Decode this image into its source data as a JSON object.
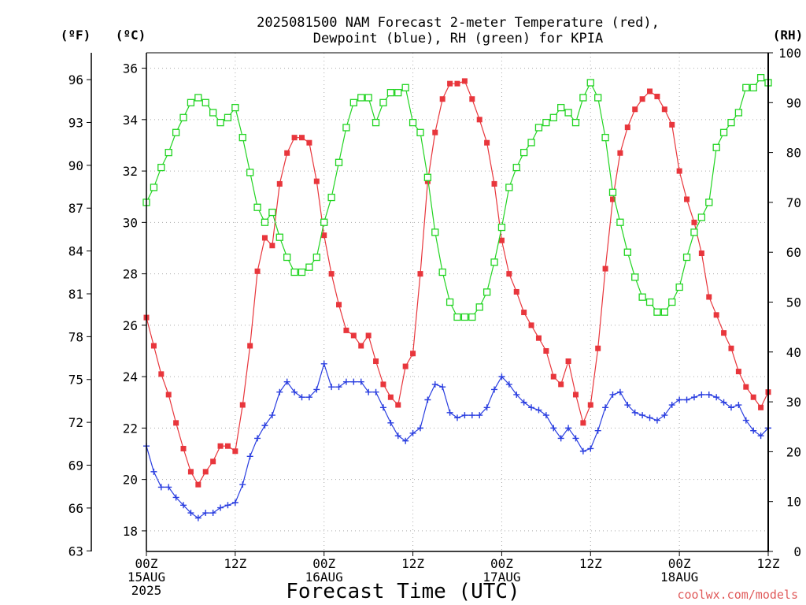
{
  "chart_data": {
    "type": "line",
    "title_line1": "2025081500 NAM Forecast 2-meter Temperature (red),",
    "title_line2": "Dewpoint (blue), RH (green) for KPIA",
    "xlabel": "Forecast Time (UTC)",
    "credit": "coolwx.com/models",
    "unit_labels": {
      "fahrenheit": "(ºF)",
      "celsius": "(ºC)",
      "rh": "(RH)"
    },
    "x_range_hours": [
      0,
      84
    ],
    "x_ticks": [
      {
        "hour": 0,
        "lines": [
          "00Z",
          "15AUG",
          "2025"
        ]
      },
      {
        "hour": 12,
        "lines": [
          "12Z"
        ]
      },
      {
        "hour": 24,
        "lines": [
          "00Z",
          "16AUG"
        ]
      },
      {
        "hour": 36,
        "lines": [
          "12Z"
        ]
      },
      {
        "hour": 48,
        "lines": [
          "00Z",
          "17AUG"
        ]
      },
      {
        "hour": 60,
        "lines": [
          "12Z"
        ]
      },
      {
        "hour": 72,
        "lines": [
          "00Z",
          "18AUG"
        ]
      },
      {
        "hour": 84,
        "lines": [
          "12Z"
        ]
      }
    ],
    "ylim_celsius": [
      17.2,
      36.6
    ],
    "ylim_rh": [
      0,
      100
    ],
    "celsius_ticks": [
      "18",
      "20",
      "22",
      "24",
      "26",
      "28",
      "30",
      "32",
      "34",
      "36"
    ],
    "fahrenheit_ticks": [
      "63",
      "66",
      "69",
      "72",
      "75",
      "78",
      "81",
      "84",
      "87",
      "90",
      "93",
      "96"
    ],
    "rh_ticks": [
      "0",
      "10",
      "20",
      "30",
      "40",
      "50",
      "60",
      "70",
      "80",
      "90",
      "100"
    ],
    "grid": true,
    "series": [
      {
        "name": "Temperature",
        "color": "#e8363c",
        "marker": "filled-square",
        "axis": "celsius",
        "values": [
          26.3,
          25.2,
          24.1,
          23.3,
          22.2,
          21.2,
          20.3,
          19.8,
          20.3,
          20.7,
          21.3,
          21.3,
          21.1,
          22.9,
          25.2,
          28.1,
          29.4,
          29.1,
          31.5,
          32.7,
          33.3,
          33.3,
          33.1,
          31.6,
          29.5,
          28.0,
          26.8,
          25.8,
          25.6,
          25.2,
          25.6,
          24.6,
          23.7,
          23.2,
          22.9,
          24.4,
          24.9,
          28.0,
          31.6,
          33.5,
          34.8,
          35.4,
          35.4,
          35.5,
          34.8,
          34.0,
          33.1,
          31.5,
          29.3,
          28.0,
          27.3,
          26.5,
          26.0,
          25.5,
          25.0,
          24.0,
          23.7,
          24.6,
          23.3,
          22.2,
          22.9,
          25.1,
          28.2,
          30.9,
          32.7,
          33.7,
          34.4,
          34.8,
          35.1,
          34.9,
          34.4,
          33.8,
          32.0,
          30.9,
          30.0,
          28.8,
          27.1,
          26.4,
          25.7,
          25.1,
          24.2,
          23.6,
          23.2,
          22.8,
          23.4
        ]
      },
      {
        "name": "Dewpoint",
        "color": "#2a3ee0",
        "marker": "plus",
        "axis": "celsius",
        "values": [
          21.3,
          20.3,
          19.7,
          19.7,
          19.3,
          19.0,
          18.7,
          18.5,
          18.7,
          18.7,
          18.9,
          19.0,
          19.1,
          19.8,
          20.9,
          21.6,
          22.1,
          22.5,
          23.4,
          23.8,
          23.4,
          23.2,
          23.2,
          23.5,
          24.5,
          23.6,
          23.6,
          23.8,
          23.8,
          23.8,
          23.4,
          23.4,
          22.8,
          22.2,
          21.7,
          21.5,
          21.8,
          22.0,
          23.1,
          23.7,
          23.6,
          22.6,
          22.4,
          22.5,
          22.5,
          22.5,
          22.8,
          23.5,
          24.0,
          23.7,
          23.3,
          23.0,
          22.8,
          22.7,
          22.5,
          22.0,
          21.6,
          22.0,
          21.6,
          21.1,
          21.2,
          21.9,
          22.8,
          23.3,
          23.4,
          22.9,
          22.6,
          22.5,
          22.4,
          22.3,
          22.5,
          22.9,
          23.1,
          23.1,
          23.2,
          23.3,
          23.3,
          23.2,
          23.0,
          22.8,
          22.9,
          22.3,
          21.9,
          21.7,
          22.0
        ]
      },
      {
        "name": "RH",
        "color": "#22d422",
        "marker": "open-square",
        "axis": "rh",
        "values": [
          70,
          73,
          77,
          80,
          84,
          87,
          90,
          91,
          90,
          88,
          86,
          87,
          89,
          83,
          76,
          69,
          66,
          68,
          63,
          59,
          56,
          56,
          57,
          59,
          66,
          71,
          78,
          85,
          90,
          91,
          91,
          86,
          90,
          92,
          92,
          93,
          86,
          84,
          75,
          64,
          56,
          50,
          47,
          47,
          47,
          49,
          52,
          58,
          65,
          73,
          77,
          80,
          82,
          85,
          86,
          87,
          89,
          88,
          86,
          91,
          94,
          91,
          83,
          72,
          66,
          60,
          55,
          51,
          50,
          48,
          48,
          50,
          53,
          59,
          64,
          67,
          70,
          81,
          84,
          86,
          88,
          93,
          93,
          95,
          94
        ]
      }
    ]
  }
}
